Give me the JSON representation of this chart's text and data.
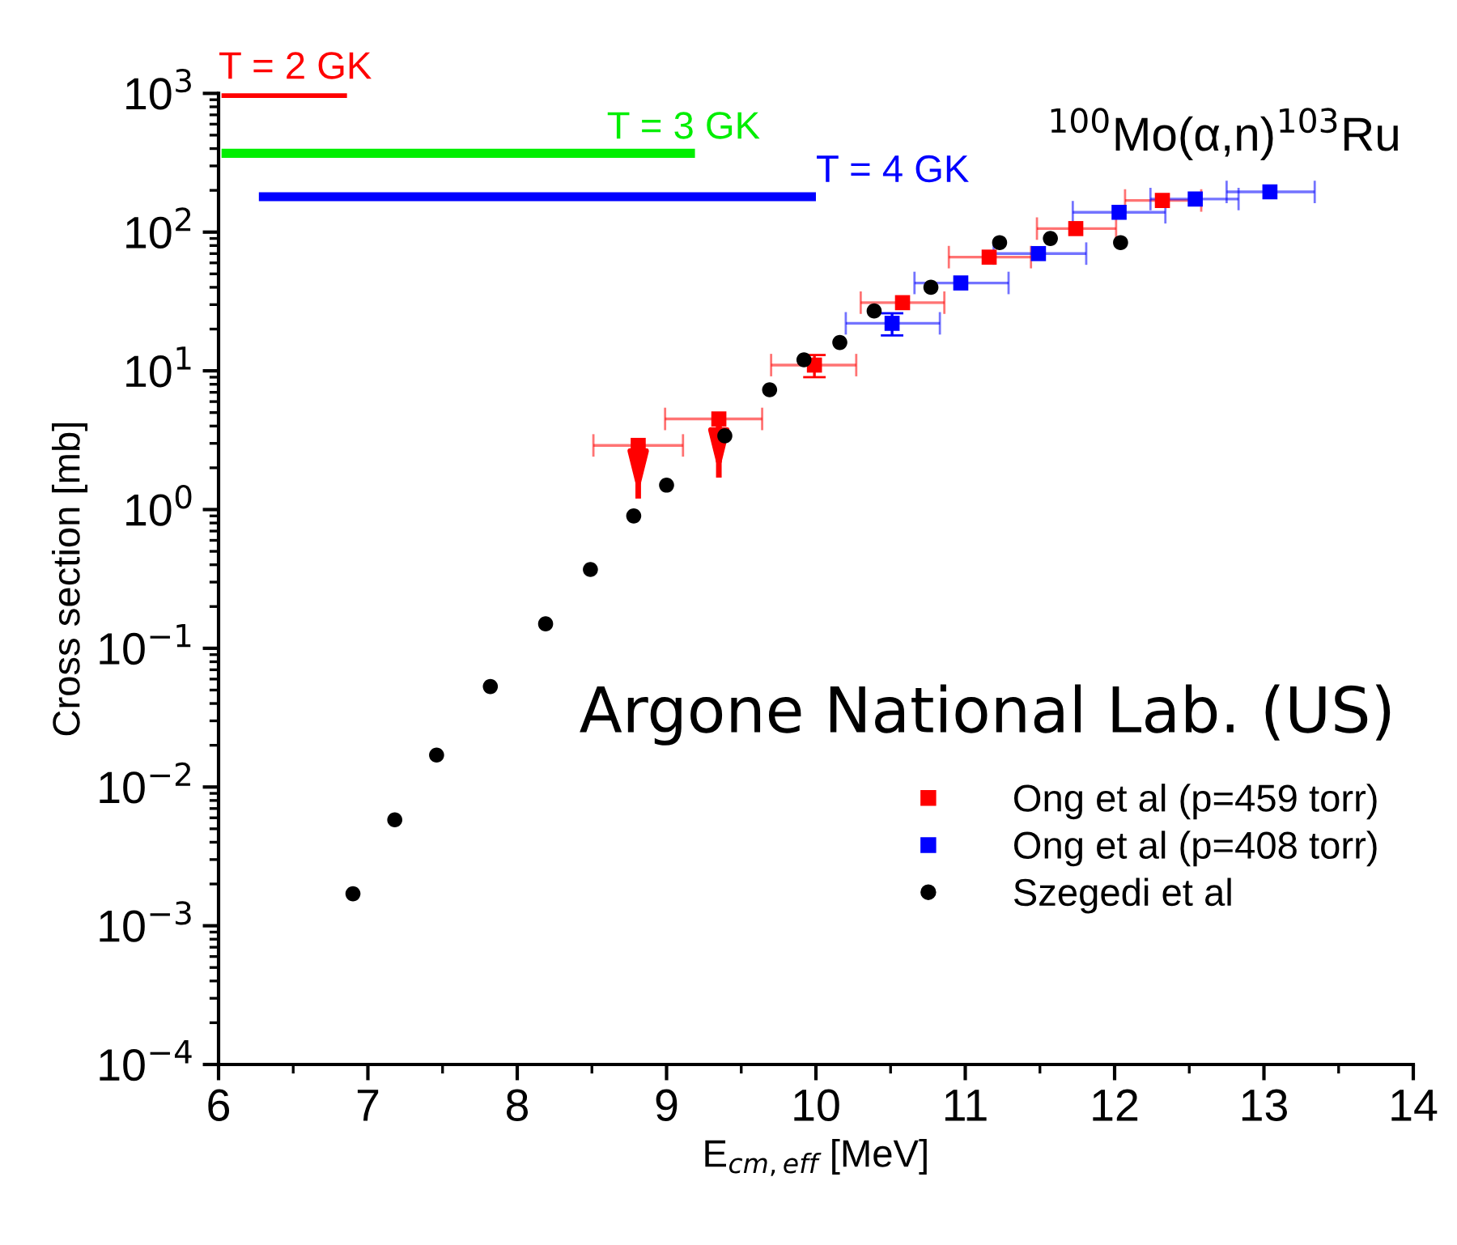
{
  "chart_data": {
    "type": "scatter",
    "title": "$^{100}$Mo(α,n)$^{103}$Ru",
    "xlabel": "E$_{cm,eff}$ [MeV]",
    "ylabel": "Cross section [mb]",
    "annotations": [
      "Argone National Lab. (US)",
      {
        "text": "T = 2 GK",
        "x": 6.0,
        "y": 1000
      },
      {
        "text": "T = 3 GK",
        "x": 8.6,
        "y": 370
      },
      {
        "text": "T = 4 GK",
        "x": 10.0,
        "y": 180
      }
    ],
    "log": "y",
    "xlim": [
      6,
      14
    ],
    "xticks": [
      6,
      7,
      8,
      9,
      10,
      11,
      12,
      13,
      14
    ],
    "ylim": [
      0.0001,
      1000
    ],
    "yticks": [
      {
        "value": 0.0001,
        "label": "10$^{−4}$"
      },
      {
        "value": 0.001,
        "label": "10$^{−3}$"
      },
      {
        "value": 0.01,
        "label": "10$^{−2}$"
      },
      {
        "value": 0.1,
        "label": "10$^{−1}$"
      },
      {
        "value": 1,
        "label": "10$^{0}$"
      },
      {
        "value": 10,
        "label": "10$^{1}$"
      },
      {
        "value": 100,
        "label": "10$^{2}$"
      },
      {
        "value": 1000,
        "label": "10$^{3}$"
      }
    ],
    "grid": false,
    "legend": "bottom right",
    "series": [
      {
        "type": "line",
        "color": "#ff0000",
        "x": [
          6.02,
          6.86
        ],
        "values": [
          1000,
          1000
        ]
      },
      {
        "type": "line",
        "color": "#00ee00",
        "x": [
          6.02,
          9.19
        ],
        "values": [
          370,
          370
        ]
      },
      {
        "type": "line",
        "color": "#0000ff",
        "x": [
          6.27,
          10.0
        ],
        "values": [
          180,
          180
        ]
      },
      {
        "name": "Ong et al (p=459 torr)",
        "color": "#ff0000",
        "marker": "square",
        "x": [
          8.81,
          9.35,
          9.99,
          10.58,
          11.16,
          11.74,
          12.32
        ],
        "values": [
          2.9,
          4.5,
          11,
          31,
          66,
          106,
          169
        ],
        "xerrors": [
          [
            8.51,
            9.11
          ],
          [
            8.99,
            9.64
          ],
          [
            9.7,
            10.27
          ],
          [
            10.3,
            10.86
          ],
          [
            10.89,
            11.44
          ],
          [
            11.48,
            12.01
          ],
          [
            12.07,
            12.58
          ]
        ],
        "errors": [
          [
            1.2,
            2.9
          ],
          [
            1.7,
            4.5
          ],
          [
            9.0,
            13
          ],
          null,
          null,
          null,
          null
        ]
      },
      {
        "name": "Ong et al (p=408 torr)",
        "color": "#0000ff",
        "marker": "square",
        "x": [
          10.51,
          10.97,
          11.49,
          12.03,
          12.54,
          13.04
        ],
        "values": [
          22,
          43,
          70,
          139,
          173,
          195
        ],
        "xerrors": [
          [
            10.2,
            10.83
          ],
          [
            10.66,
            11.29
          ],
          [
            11.19,
            11.81
          ],
          [
            11.72,
            12.34
          ],
          [
            12.24,
            12.83
          ],
          [
            12.75,
            13.34
          ]
        ],
        "errors": [
          [
            18,
            26
          ],
          null,
          null,
          null,
          null,
          null
        ]
      },
      {
        "name": "Szegedi et al",
        "color": "#000000",
        "marker": "circle",
        "x": [
          6.9,
          7.18,
          7.46,
          7.82,
          8.19,
          8.49,
          8.78,
          9.0,
          9.39,
          9.69,
          9.92,
          10.16,
          10.39,
          10.77,
          11.23,
          11.57,
          12.04
        ],
        "values": [
          0.0017,
          0.0058,
          0.017,
          0.053,
          0.15,
          0.37,
          0.9,
          1.5,
          3.4,
          7.3,
          12,
          16,
          27,
          40,
          84,
          90,
          84
        ]
      }
    ]
  }
}
